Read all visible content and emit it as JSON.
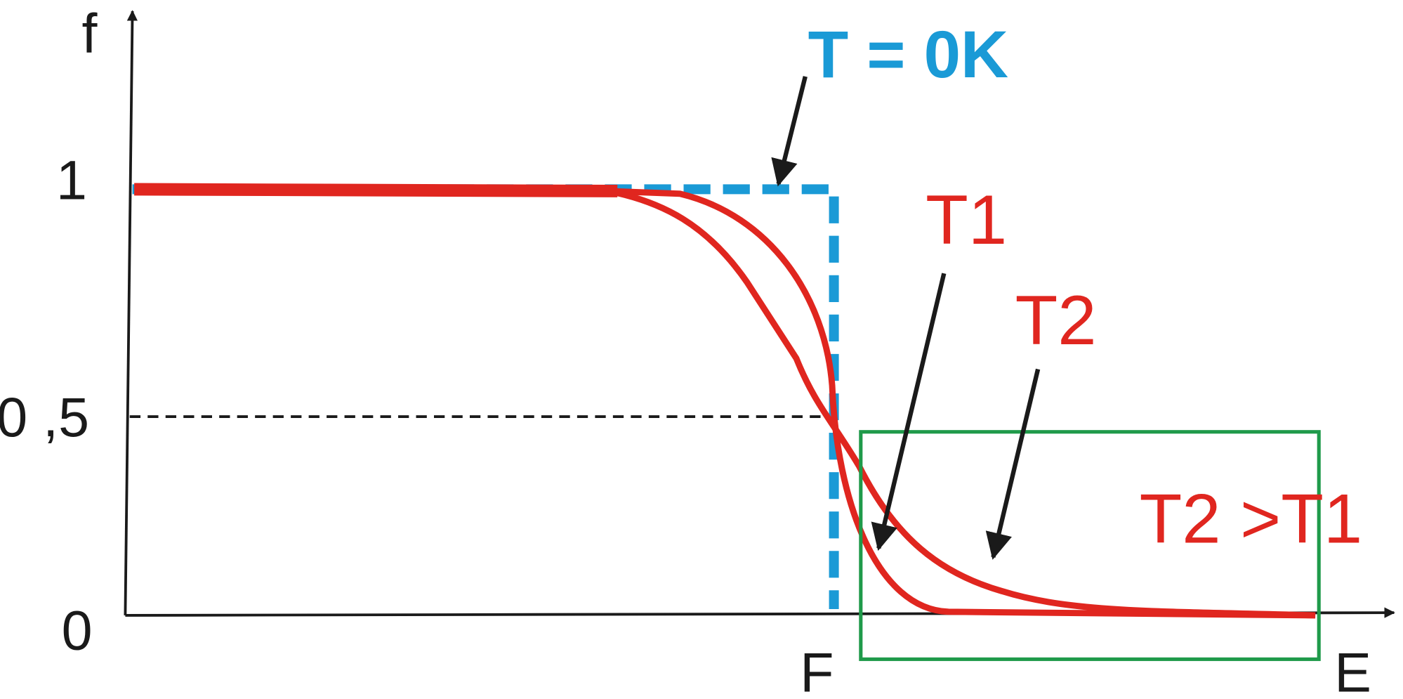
{
  "axes": {
    "y_label": "f",
    "x_label": "E",
    "y_one": "1",
    "y_half": "0 ,5",
    "y_zero": "0",
    "x_fermi": "F"
  },
  "annotations": {
    "zero_kelvin": "T = 0K",
    "t1": "T1",
    "t2": "T2",
    "comparison": "T2 >T1"
  }
}
